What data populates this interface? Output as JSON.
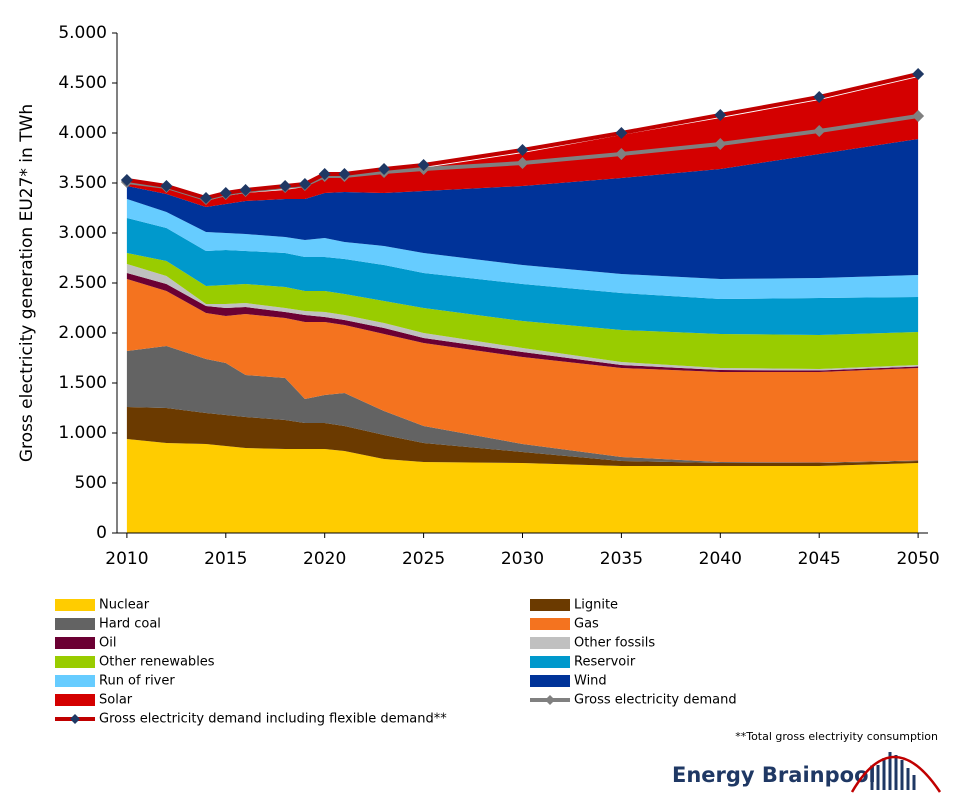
{
  "chart_data": {
    "type": "stacked_area",
    "y_label": "Gross electricity generation EU27* in TWh",
    "x": [
      2010,
      2012,
      2014,
      2015,
      2016,
      2018,
      2019,
      2020,
      2021,
      2023,
      2025,
      2030,
      2035,
      2040,
      2045,
      2050
    ],
    "xlim": [
      2009.5,
      2050.5
    ],
    "xticks": [
      2010,
      2015,
      2020,
      2025,
      2030,
      2035,
      2040,
      2045,
      2050
    ],
    "ylim": [
      0,
      5000
    ],
    "yticks": [
      0,
      500,
      {
        "value": 1000,
        "label": "1.000"
      },
      {
        "value": 1500,
        "label": "1.500"
      },
      {
        "value": 2000,
        "label": "2.000"
      },
      {
        "value": 2500,
        "label": "2.500"
      },
      {
        "value": 3000,
        "label": "3.000"
      },
      {
        "value": 3500,
        "label": "3.500"
      },
      {
        "value": 4000,
        "label": "4.000"
      },
      {
        "value": 4500,
        "label": "4.500"
      },
      {
        "value": 5000,
        "label": "5.000"
      }
    ],
    "series": [
      {
        "name": "Nuclear",
        "color": "#ffcc00",
        "values": [
          940,
          900,
          890,
          870,
          850,
          840,
          840,
          840,
          820,
          740,
          710,
          700,
          670,
          670,
          670,
          700
        ]
      },
      {
        "name": "Lignite",
        "color": "#6b3a00",
        "values": [
          320,
          350,
          310,
          310,
          310,
          290,
          260,
          260,
          250,
          240,
          190,
          110,
          50,
          30,
          30,
          20
        ]
      },
      {
        "name": "Hard coal",
        "color": "#636363",
        "values": [
          560,
          620,
          540,
          520,
          420,
          420,
          240,
          280,
          330,
          240,
          170,
          80,
          40,
          10,
          5,
          5
        ]
      },
      {
        "name": "Gas",
        "color": "#f4731f",
        "values": [
          720,
          550,
          460,
          470,
          610,
          600,
          770,
          730,
          680,
          770,
          830,
          870,
          890,
          900,
          905,
          925
        ]
      },
      {
        "name": "Oil",
        "color": "#6b0033",
        "values": [
          60,
          70,
          70,
          80,
          70,
          60,
          70,
          50,
          50,
          60,
          50,
          50,
          30,
          20,
          15,
          15
        ]
      },
      {
        "name": "Other fossils",
        "color": "#c0c0c0",
        "values": [
          90,
          80,
          20,
          40,
          40,
          40,
          40,
          50,
          50,
          50,
          50,
          40,
          30,
          20,
          15,
          15
        ]
      },
      {
        "name": "Other renewables",
        "color": "#99cc00",
        "values": [
          110,
          150,
          180,
          190,
          190,
          210,
          200,
          210,
          210,
          220,
          250,
          270,
          320,
          340,
          340,
          330
        ]
      },
      {
        "name": "Reservoir",
        "color": "#0099cc",
        "values": [
          350,
          330,
          350,
          350,
          330,
          340,
          340,
          340,
          350,
          360,
          350,
          370,
          370,
          350,
          370,
          350
        ]
      },
      {
        "name": "Run of river",
        "color": "#66ccff",
        "values": [
          190,
          160,
          190,
          170,
          170,
          160,
          170,
          190,
          170,
          190,
          200,
          190,
          190,
          200,
          200,
          220
        ]
      },
      {
        "name": "Wind",
        "color": "#003399",
        "values": [
          130,
          180,
          250,
          290,
          330,
          380,
          410,
          450,
          500,
          530,
          620,
          790,
          960,
          1100,
          1240,
          1360
        ]
      },
      {
        "name": "Solar",
        "color": "#d40000",
        "values": [
          40,
          60,
          60,
          80,
          80,
          90,
          120,
          160,
          160,
          210,
          230,
          330,
          430,
          510,
          540,
          620
        ]
      }
    ],
    "lines": [
      {
        "name": "Gross electricity demand",
        "color": "#808080",
        "marker_color": "#808080",
        "values": [
          3510,
          3460,
          3340,
          3390,
          3420,
          3460,
          3480,
          3570,
          3570,
          3610,
          3640,
          3700,
          3790,
          3890,
          4020,
          4170
        ]
      },
      {
        "name": "Gross electricity demand including flexible demand**",
        "color": "#c00000",
        "marker_color": "#1f3864",
        "values": [
          3530,
          3470,
          3350,
          3400,
          3430,
          3470,
          3490,
          3590,
          3590,
          3640,
          3680,
          3830,
          4000,
          4180,
          4360,
          4590
        ]
      }
    ],
    "footnote": "**Total gross electriyity consumption",
    "logo": "Energy Brainpool"
  }
}
